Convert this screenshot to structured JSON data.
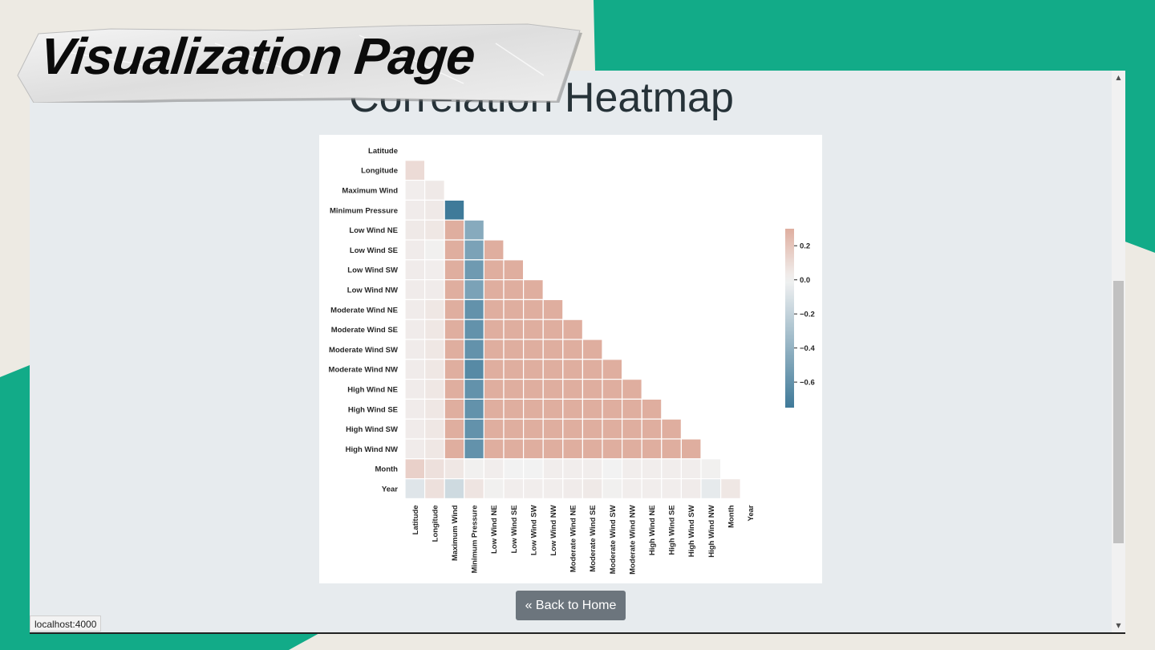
{
  "slide": {
    "title": "Visualization Page",
    "accent_color": "#12ab88",
    "background_color": "#edeae3"
  },
  "page": {
    "heading": "Correlation Heatmap",
    "back_button_label": "« Back to Home",
    "status_url": "localhost:4000"
  },
  "chart_data": {
    "type": "heatmap",
    "title": "",
    "variables": [
      "Latitude",
      "Longitude",
      "Maximum Wind",
      "Minimum Pressure",
      "Low Wind NE",
      "Low Wind SE",
      "Low Wind SW",
      "Low Wind NW",
      "Moderate Wind NE",
      "Moderate Wind SE",
      "Moderate Wind SW",
      "Moderate Wind NW",
      "High Wind NE",
      "High Wind SE",
      "High Wind SW",
      "High Wind NW",
      "Month",
      "Year"
    ],
    "mask": "upper-triangle-including-diagonal",
    "matrix_lower": [
      [],
      [
        0.1
      ],
      [
        0.02,
        0.04
      ],
      [
        0.03,
        0.04,
        -0.75
      ],
      [
        0.04,
        0.05,
        0.3,
        -0.45
      ],
      [
        0.03,
        0.01,
        0.3,
        -0.5,
        0.3
      ],
      [
        0.03,
        0.02,
        0.3,
        -0.55,
        0.3,
        0.3
      ],
      [
        0.03,
        0.03,
        0.3,
        -0.5,
        0.3,
        0.3,
        0.3
      ],
      [
        0.03,
        0.05,
        0.3,
        -0.6,
        0.3,
        0.3,
        0.3,
        0.3
      ],
      [
        0.03,
        0.05,
        0.3,
        -0.6,
        0.3,
        0.3,
        0.3,
        0.3,
        0.3
      ],
      [
        0.03,
        0.05,
        0.3,
        -0.6,
        0.3,
        0.3,
        0.3,
        0.3,
        0.3,
        0.3
      ],
      [
        0.03,
        0.05,
        0.3,
        -0.65,
        0.3,
        0.3,
        0.3,
        0.3,
        0.3,
        0.3,
        0.3
      ],
      [
        0.03,
        0.05,
        0.3,
        -0.6,
        0.3,
        0.3,
        0.3,
        0.3,
        0.3,
        0.3,
        0.3,
        0.3
      ],
      [
        0.03,
        0.05,
        0.3,
        -0.6,
        0.3,
        0.3,
        0.3,
        0.3,
        0.3,
        0.3,
        0.3,
        0.3,
        0.3
      ],
      [
        0.03,
        0.05,
        0.3,
        -0.6,
        0.3,
        0.3,
        0.3,
        0.3,
        0.3,
        0.3,
        0.3,
        0.3,
        0.3,
        0.3
      ],
      [
        0.03,
        0.05,
        0.3,
        -0.6,
        0.3,
        0.3,
        0.3,
        0.3,
        0.3,
        0.3,
        0.3,
        0.3,
        0.3,
        0.3,
        0.3
      ],
      [
        0.15,
        0.08,
        0.05,
        0.01,
        0.02,
        0.0,
        0.0,
        0.02,
        0.02,
        0.02,
        0.0,
        0.02,
        0.02,
        0.02,
        0.02,
        0.01
      ],
      [
        -0.08,
        0.08,
        -0.15,
        0.06,
        0.01,
        0.02,
        0.02,
        0.02,
        0.03,
        0.04,
        0.01,
        0.02,
        0.02,
        0.02,
        0.03,
        -0.05,
        0.05
      ]
    ],
    "colorbar": {
      "min": -0.75,
      "max": 0.3,
      "ticks": [
        "0.2",
        "0.0",
        "−0.2",
        "−0.4",
        "−0.6"
      ],
      "tick_values": [
        0.2,
        0.0,
        -0.2,
        -0.4,
        -0.6
      ],
      "colormap": "diverging blue-red",
      "negative_color": "#3f7a99",
      "neutral_color": "#f2f2f2",
      "positive_color": "#dfae9f"
    }
  }
}
